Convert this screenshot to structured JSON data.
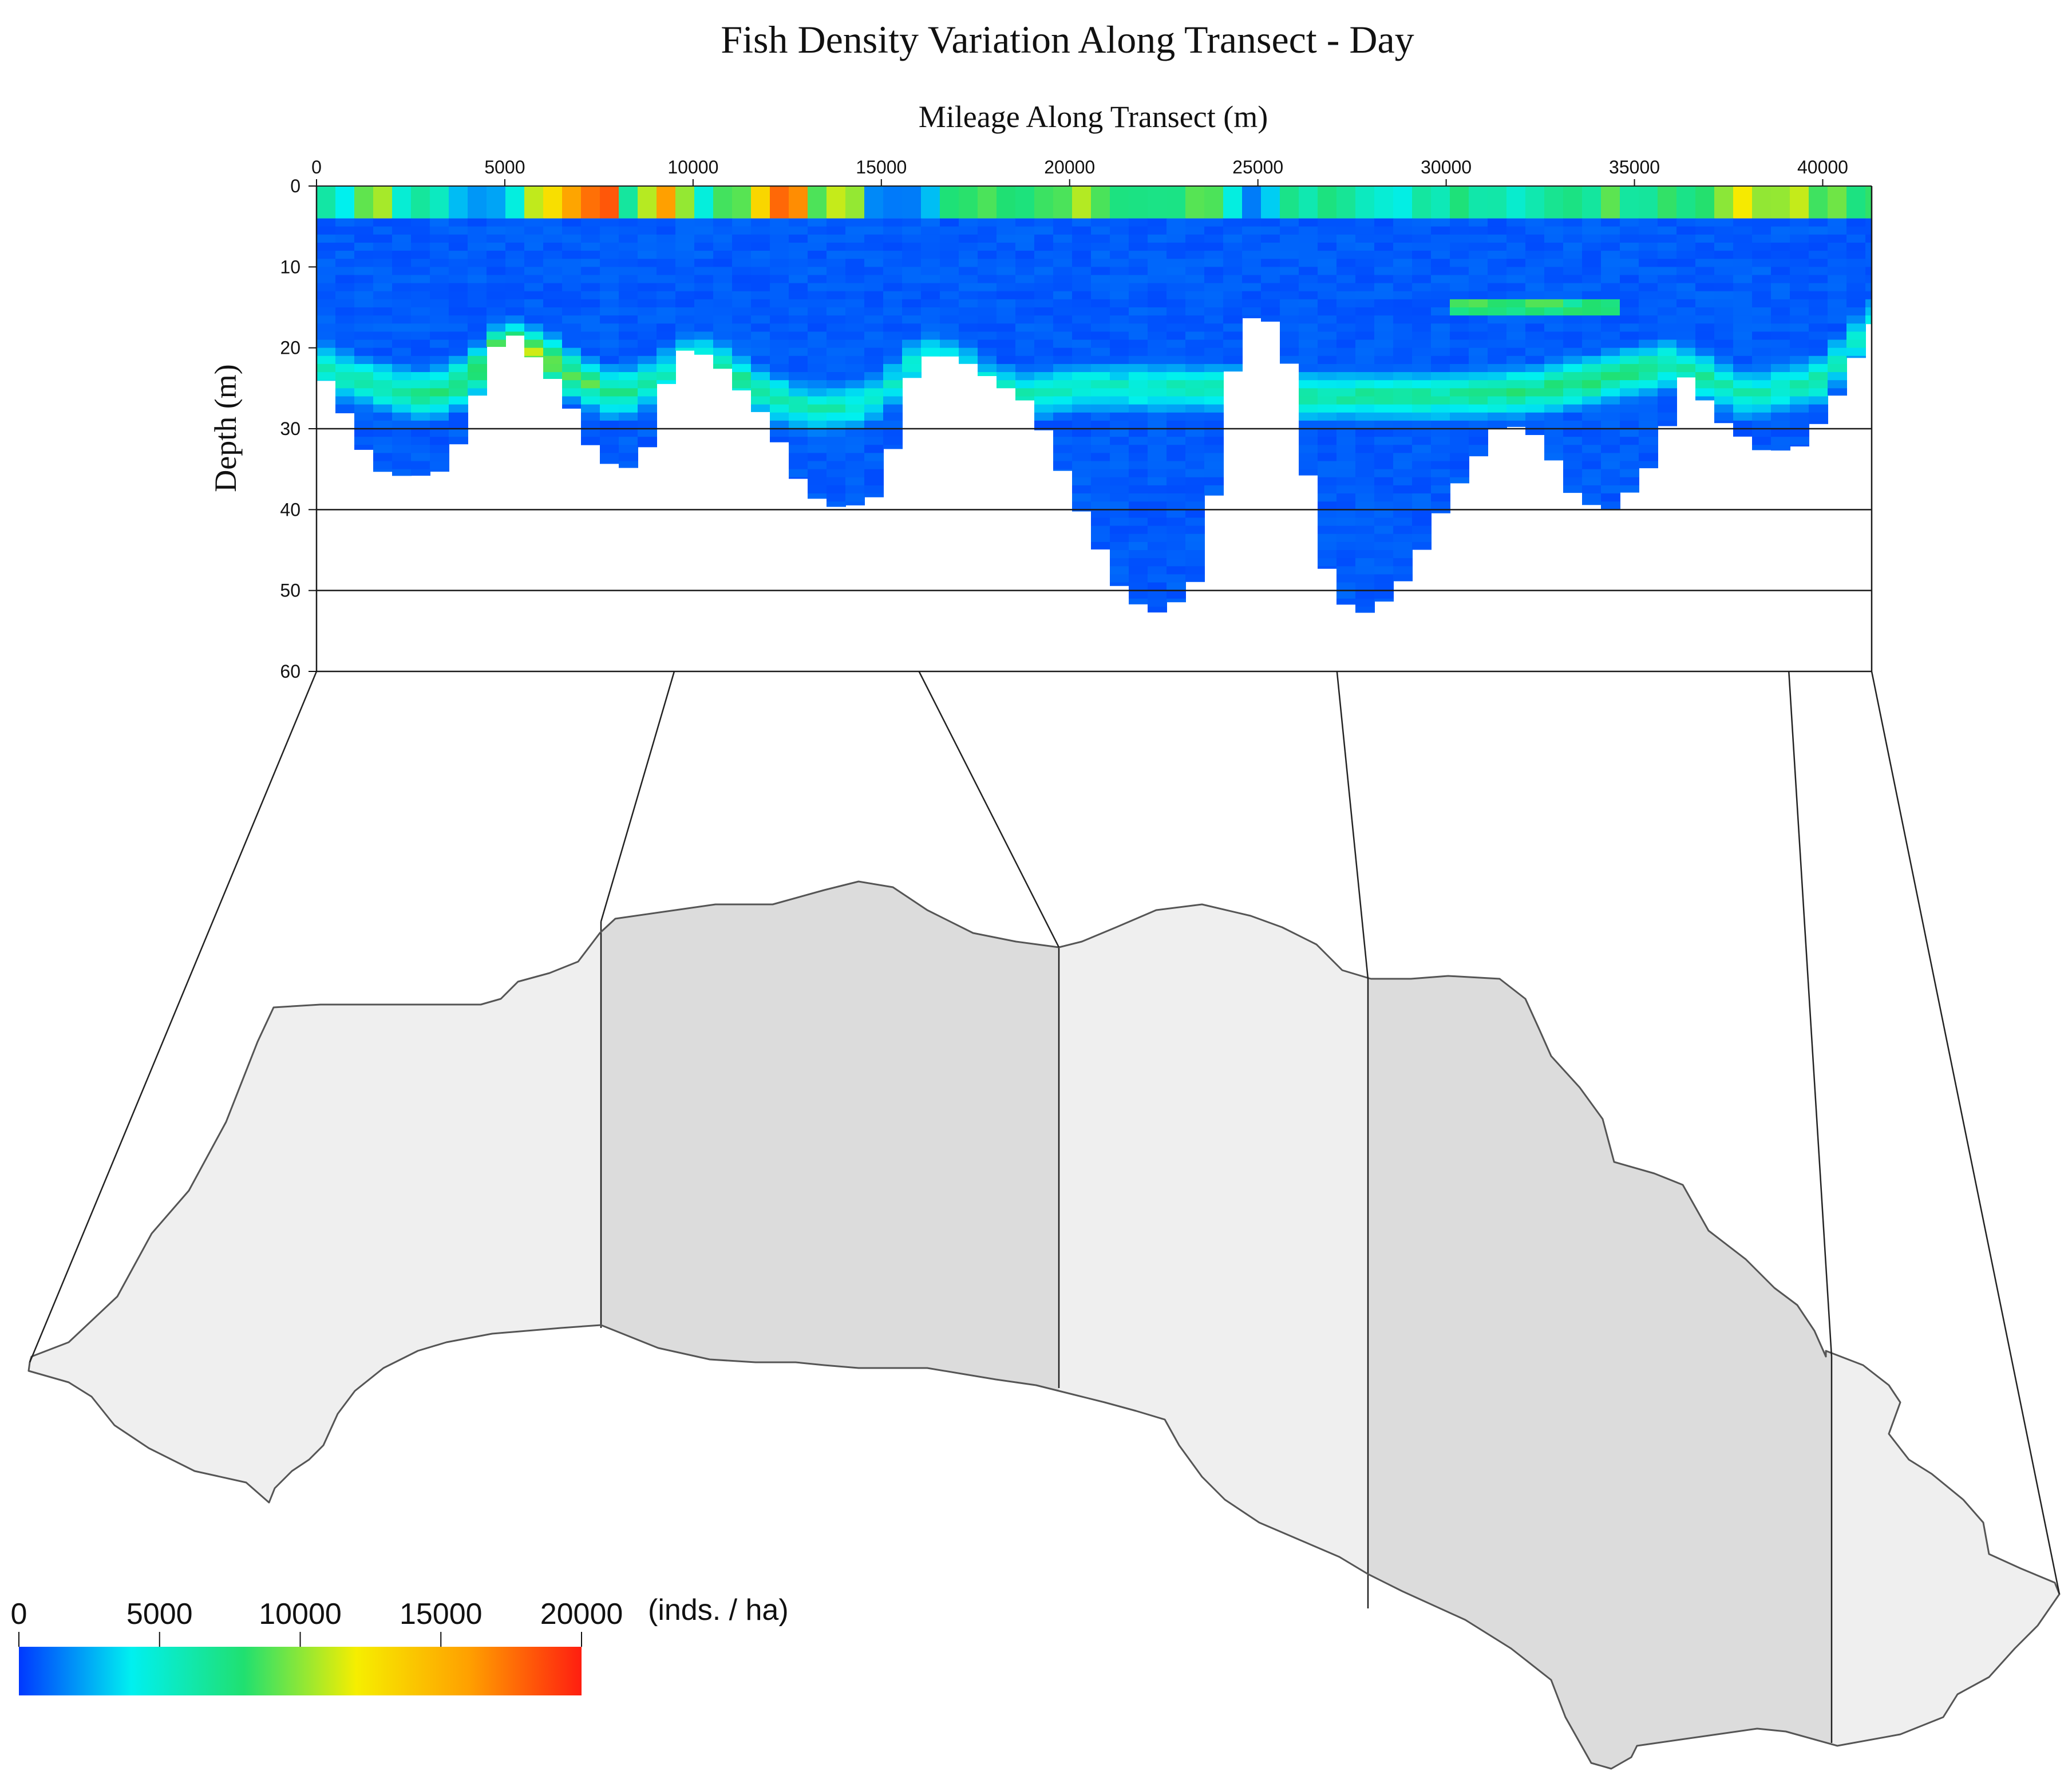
{
  "chart_data": {
    "type": "heatmap",
    "title": "Fish Density Variation Along Transect - Day",
    "xlabel": "Mileage Along Transect (m)",
    "ylabel": "Depth (m)",
    "xlim": [
      0,
      41300
    ],
    "ylim": [
      60,
      0
    ],
    "x_axis_position": "top",
    "x_ticks": [
      0,
      5000,
      10000,
      15000,
      20000,
      25000,
      30000,
      35000,
      40000
    ],
    "x_tick_labels": [
      "0",
      "5000",
      "10000",
      "15000",
      "20000",
      "25000",
      "30000",
      "35000",
      "40000"
    ],
    "y_ticks": [
      0,
      10,
      20,
      30,
      40,
      50,
      60
    ],
    "y_tick_labels": [
      "0",
      "10",
      "20",
      "30",
      "40",
      "50",
      "60"
    ],
    "grid_depths": [
      30,
      40,
      50,
      60
    ],
    "segment_boundaries_m": [
      0,
      9500,
      16000,
      27100,
      39100,
      41300
    ],
    "bottom_profile": {
      "x": [
        0,
        1000,
        1500,
        2500,
        3500,
        4000,
        5000,
        6500,
        7500,
        8500,
        9000,
        9500,
        10500,
        12000,
        13000,
        14000,
        15000,
        15700,
        16000,
        17000,
        19000,
        20500,
        21500,
        22500,
        23500,
        24300,
        24500,
        25700,
        26000,
        27000,
        28000,
        29000,
        30000,
        31500,
        32500,
        33500,
        34500,
        35500,
        36500,
        37000,
        38500,
        39500,
        40500,
        41300
      ],
      "depth": [
        22,
        30,
        35,
        36,
        35,
        29,
        17,
        25,
        34,
        35,
        30,
        20,
        21,
        29,
        38,
        40,
        38,
        25,
        21,
        21,
        27,
        42,
        51,
        53,
        48,
        24,
        16,
        17,
        28,
        51,
        53,
        48,
        39,
        29,
        31,
        39,
        40,
        34,
        22,
        28,
        33,
        32,
        25,
        17
      ]
    },
    "fish_layer": {
      "x": [
        0,
        1000,
        2000,
        3000,
        4000,
        5000,
        6000,
        7000,
        8000,
        9000,
        10000,
        11000,
        12000,
        13000,
        14000,
        15000,
        16000,
        17000,
        18000,
        19000,
        20000,
        22000,
        24000,
        26000,
        28000,
        30000,
        32000,
        34000,
        36000,
        38000,
        40000,
        41300
      ],
      "depth": [
        22,
        24,
        25,
        26,
        24,
        19.5,
        21,
        24,
        26,
        24,
        21,
        23,
        26,
        27.5,
        27.5,
        26,
        21,
        22,
        25,
        26,
        25,
        25,
        25,
        26,
        26,
        26,
        25.5,
        24,
        22,
        26,
        24,
        17
      ],
      "density": [
        6500,
        6500,
        7000,
        7500,
        8500,
        11000,
        11000,
        9000,
        7500,
        6000,
        6000,
        7000,
        6500,
        6000,
        6000,
        5000,
        5000,
        5500,
        6000,
        6000,
        6000,
        6000,
        6000,
        7000,
        7000,
        7000,
        7500,
        8500,
        7000,
        6000,
        6500,
        5000
      ]
    },
    "mid_patch": {
      "x_range": [
        30200,
        34800
      ],
      "depth": 15,
      "density": 9000
    },
    "surface_strip": {
      "depth_range": [
        0,
        4
      ],
      "x": [
        0,
        1000,
        1500,
        2000,
        3000,
        3500,
        4000,
        5000,
        6000,
        7000,
        7500,
        8000,
        8500,
        9000,
        9500,
        10000,
        11000,
        12000,
        12500,
        13000,
        13500,
        14000,
        14500,
        15000,
        16000,
        17000,
        18000,
        19000,
        20000,
        21000,
        22000,
        23000,
        24000,
        24500,
        25000,
        26000,
        27000,
        28000,
        29000,
        30000,
        31000,
        32000,
        33000,
        34000,
        35000,
        36000,
        37000,
        38000,
        39000,
        40000,
        41000
      ],
      "density": [
        6000,
        4000,
        18000,
        4000,
        9000,
        4000,
        2000,
        2000,
        12000,
        16000,
        19000,
        13000,
        4000,
        15000,
        19000,
        3000,
        9000,
        14000,
        17000,
        18000,
        3000,
        19000,
        2000,
        1500,
        1500,
        8000,
        9000,
        8000,
        10000,
        9000,
        8000,
        9000,
        8000,
        2000,
        1000,
        8000,
        6500,
        6000,
        5000,
        7000,
        6000,
        4000,
        7000,
        8000,
        7000,
        9000,
        9000,
        11000,
        10000,
        9000,
        9000
      ]
    },
    "colorbar": {
      "ticks": [
        0,
        5000,
        10000,
        15000,
        20000
      ],
      "tick_labels": [
        "0",
        "5000",
        "10000",
        "15000",
        "20000"
      ],
      "unit": "(inds. / ha)",
      "range": [
        0,
        20000
      ],
      "colors": [
        "#0038ff",
        "#00f0f0",
        "#20e070",
        "#f6ee00",
        "#ffa000",
        "#ff1e10"
      ]
    }
  },
  "palette": {
    "region_light": "#efefef",
    "region_dark": "#dcdcdc",
    "outline": "#555555",
    "grid": "#1a1a1a"
  }
}
